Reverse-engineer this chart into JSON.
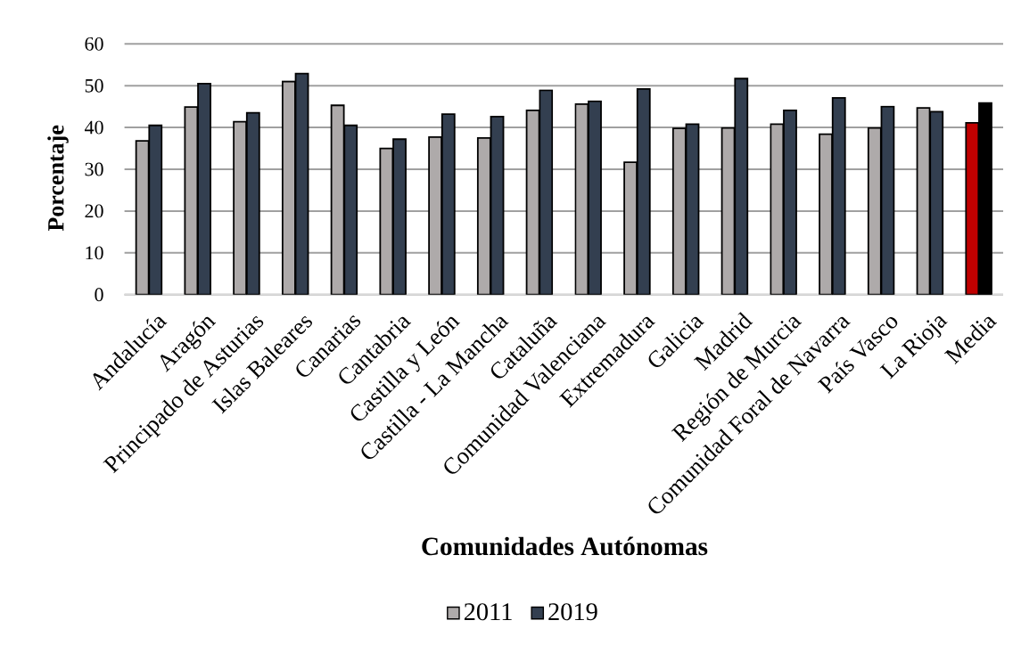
{
  "chart_data": {
    "type": "bar",
    "xlabel": "Comunidades Autónomas",
    "ylabel": "Porcentaje",
    "categories": [
      "Andalucía",
      "Aragón",
      "Principado de Asturias",
      "Islas Baleares",
      "Canarias",
      "Cantabria",
      "Castilla y León",
      "Castilla - La Mancha",
      "Cataluña",
      "Comunidad Valenciana",
      "Extremadura",
      "Galicia",
      "Madrid",
      "Región de Murcia",
      "Comunidad Foral de Navarra",
      "País Vasco",
      "La Rioja",
      "Media"
    ],
    "series": [
      {
        "name": "2011",
        "color": "#aeaaaa",
        "colors": [
          "#aeaaaa",
          "#aeaaaa",
          "#aeaaaa",
          "#aeaaaa",
          "#aeaaaa",
          "#aeaaaa",
          "#aeaaaa",
          "#aeaaaa",
          "#aeaaaa",
          "#aeaaaa",
          "#aeaaaa",
          "#aeaaaa",
          "#aeaaaa",
          "#aeaaaa",
          "#aeaaaa",
          "#aeaaaa",
          "#aeaaaa",
          "#c00000"
        ],
        "values": [
          36.8,
          44.9,
          41.4,
          51.0,
          45.3,
          35.0,
          37.7,
          37.5,
          44.1,
          45.6,
          31.7,
          39.8,
          39.9,
          40.8,
          38.4,
          39.9,
          44.7,
          41.1
        ]
      },
      {
        "name": "2019",
        "color": "#333f50",
        "colors": [
          "#333f50",
          "#333f50",
          "#333f50",
          "#333f50",
          "#333f50",
          "#333f50",
          "#333f50",
          "#333f50",
          "#333f50",
          "#333f50",
          "#333f50",
          "#333f50",
          "#333f50",
          "#333f50",
          "#333f50",
          "#333f50",
          "#333f50",
          "#000000"
        ],
        "values": [
          40.5,
          50.5,
          43.5,
          52.9,
          40.5,
          37.2,
          43.2,
          42.6,
          48.9,
          46.3,
          49.2,
          40.8,
          51.7,
          44.1,
          47.1,
          45.0,
          43.8,
          45.9
        ]
      }
    ],
    "ylim": [
      0,
      60
    ],
    "yticks": [
      0,
      10,
      20,
      30,
      40,
      50,
      60
    ],
    "grid": "y",
    "legend": "bottom"
  }
}
